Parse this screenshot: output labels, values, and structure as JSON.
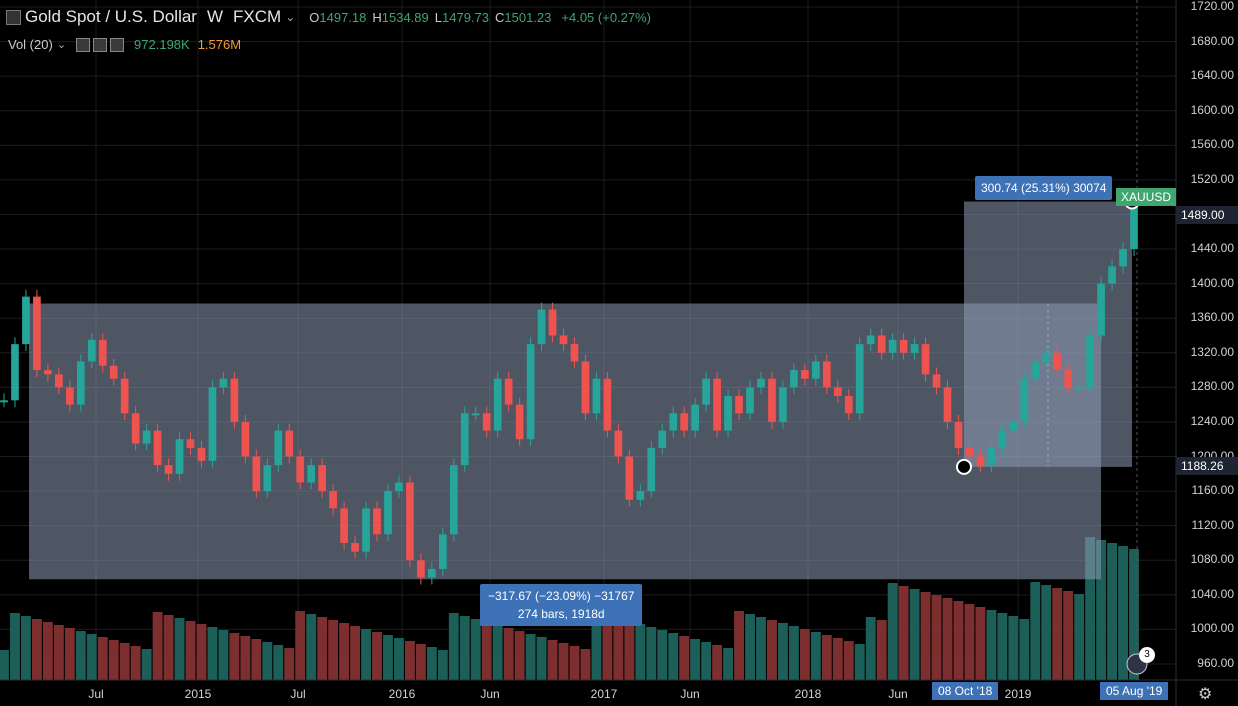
{
  "symbol": {
    "title": "Gold Spot / U.S. Dollar",
    "interval": "W",
    "exchange": "FXCM",
    "o_label": "O",
    "o_value": "1497.18",
    "h_label": "H",
    "h_value": "1534.89",
    "l_label": "L",
    "l_value": "1479.73",
    "c_label": "C",
    "c_value": "1501.23",
    "change": "+4.05 (+0.27%)"
  },
  "volume_indicator": {
    "label": "Vol (20)",
    "value_1": "972.198K",
    "value_2": "1.576M"
  },
  "measure_boxes": {
    "large_box": {
      "line1": "−317.67 (−23.09%) −31767",
      "line2": "274 bars, 1918d"
    },
    "small_box": {
      "label": "300.74 (25.31%) 30074"
    }
  },
  "price_tags": {
    "symbol_tag": "XAUUSD",
    "current": "1489.00",
    "low": "1188.26"
  },
  "time_tags": {
    "start": "08 Oct '18",
    "end": "05 Aug '19"
  },
  "misc": {
    "badge_count": "3"
  },
  "colors": {
    "up": "#26a69a",
    "down": "#ef5350",
    "volume_up": "#1c5f58",
    "volume_down": "#7d2f2f",
    "measure_fill": "#8e9bb5",
    "tag_blue": "#3d72b7",
    "current_tag": "#3ea66f"
  },
  "chart_data": {
    "type": "line",
    "title": "Gold Spot / U.S. Dollar",
    "xlabel": "",
    "ylabel": "",
    "ylim": [
      940,
      1720
    ],
    "yticks": [
      "960.00",
      "1000.00",
      "1040.00",
      "1080.00",
      "1120.00",
      "1160.00",
      "1200.00",
      "1240.00",
      "1280.00",
      "1320.00",
      "1360.00",
      "1400.00",
      "1440.00",
      "1480.00",
      "1520.00",
      "1560.00",
      "1600.00",
      "1640.00",
      "1680.00",
      "1720.00"
    ],
    "xticks": [
      "Jul",
      "2015",
      "Jul",
      "2016",
      "Jun",
      "2017",
      "Jun",
      "2018",
      "Jun",
      "2019"
    ],
    "grid": true,
    "series": [
      {
        "values": [
          1265,
          1330,
          1385,
          1300,
          1295,
          1280,
          1260,
          1310,
          1335,
          1305,
          1290,
          1250,
          1215,
          1230,
          1190,
          1180,
          1220,
          1210,
          1195,
          1280,
          1290,
          1240,
          1200,
          1160,
          1190,
          1230,
          1200,
          1170,
          1190,
          1160,
          1140,
          1100,
          1090,
          1140,
          1110,
          1160,
          1170,
          1080,
          1060,
          1070,
          1110,
          1190,
          1250,
          1250,
          1230,
          1290,
          1260,
          1220,
          1330,
          1370,
          1340,
          1330,
          1310,
          1250,
          1290,
          1230,
          1200,
          1150,
          1160,
          1210,
          1230,
          1250,
          1230,
          1260,
          1290,
          1230,
          1270,
          1250,
          1280,
          1290,
          1240,
          1280,
          1300,
          1290,
          1310,
          1280,
          1270,
          1250,
          1330,
          1340,
          1320,
          1335,
          1320,
          1330,
          1295,
          1280,
          1240,
          1210,
          1200,
          1190,
          1210,
          1230,
          1240,
          1290,
          1310,
          1320,
          1300,
          1280,
          1280,
          1340,
          1400,
          1420,
          1440,
          1500
        ]
      }
    ]
  }
}
